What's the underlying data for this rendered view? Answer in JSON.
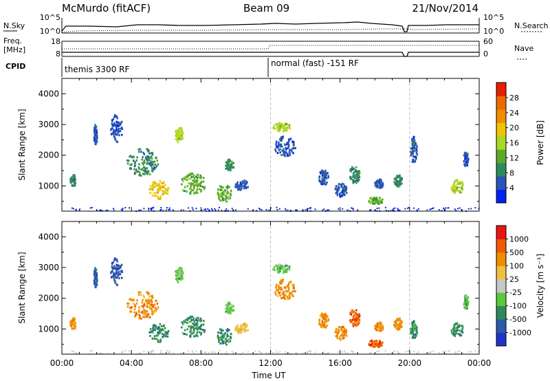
{
  "header": {
    "title": "McMurdo (fitACF)",
    "beam": "Beam 09",
    "date": "21/Nov/2014"
  },
  "strip": {
    "nsky_label": "N.Sky",
    "nsearch_label": "N.Search",
    "freq_label_1": "Freq.",
    "freq_label_2": "[MHz]",
    "nave_label": "Nave",
    "cpid_label": "CPID",
    "noise_left_ticks": [
      "10^5",
      "10^0"
    ],
    "noise_right_ticks": [
      "10^5",
      "10^0"
    ],
    "freq_ticks": [
      "18",
      "8"
    ],
    "nave_ticks": [
      "60",
      "0"
    ],
    "cpid_1": "themis 3300 RF",
    "cpid_2": "normal (fast) -151 RF"
  },
  "chart_data": [
    {
      "type": "heatmap",
      "name": "power",
      "ylabel": "Slant Range [km]",
      "xlabel": "",
      "ylim": [
        180,
        4500
      ],
      "xlim": [
        0,
        24
      ],
      "yticks": [
        "1000",
        "2000",
        "3000",
        "4000"
      ],
      "colorbar_label": "Power [dB]",
      "colorbar_ticks": [
        "28",
        "24",
        "20",
        "16",
        "12",
        "8",
        "4"
      ],
      "colorbar_colors": [
        "#0022ee",
        "#2a52b8",
        "#2e8a5a",
        "#5aaa2a",
        "#a8d828",
        "#f0c400",
        "#f08c00",
        "#ee6a00",
        "#e81e00"
      ],
      "echoes": [
        {
          "t": 0.6,
          "r": 1200,
          "dt": 0.35,
          "dr": 400,
          "c": 2
        },
        {
          "t": 1.9,
          "r": 2700,
          "dt": 0.2,
          "dr": 700,
          "c": 1
        },
        {
          "t": 3.1,
          "r": 2900,
          "dt": 0.7,
          "dr": 900,
          "c": 1
        },
        {
          "t": 4.6,
          "r": 1800,
          "dt": 1.8,
          "dr": 900,
          "c": 2
        },
        {
          "t": 5.5,
          "r": 900,
          "dt": 1.2,
          "dr": 600,
          "c": 5
        },
        {
          "t": 6.7,
          "r": 2700,
          "dt": 0.5,
          "dr": 500,
          "c": 4
        },
        {
          "t": 7.5,
          "r": 1100,
          "dt": 1.5,
          "dr": 700,
          "c": 3
        },
        {
          "t": 9.3,
          "r": 800,
          "dt": 0.8,
          "dr": 600,
          "c": 3
        },
        {
          "t": 9.6,
          "r": 1700,
          "dt": 0.5,
          "dr": 400,
          "c": 2
        },
        {
          "t": 10.3,
          "r": 1050,
          "dt": 0.8,
          "dr": 350,
          "c": 1
        },
        {
          "t": 12.6,
          "r": 2950,
          "dt": 1.0,
          "dr": 300,
          "c": 4
        },
        {
          "t": 12.8,
          "r": 2300,
          "dt": 1.2,
          "dr": 700,
          "c": 1
        },
        {
          "t": 15.0,
          "r": 1300,
          "dt": 0.6,
          "dr": 500,
          "c": 1
        },
        {
          "t": 16.0,
          "r": 900,
          "dt": 0.7,
          "dr": 500,
          "c": 1
        },
        {
          "t": 16.8,
          "r": 1400,
          "dt": 0.6,
          "dr": 600,
          "c": 2
        },
        {
          "t": 18.2,
          "r": 1100,
          "dt": 0.5,
          "dr": 300,
          "c": 1
        },
        {
          "t": 18.0,
          "r": 550,
          "dt": 0.9,
          "dr": 250,
          "c": 3
        },
        {
          "t": 19.3,
          "r": 1200,
          "dt": 0.5,
          "dr": 400,
          "c": 2
        },
        {
          "t": 20.2,
          "r": 2200,
          "dt": 0.4,
          "dr": 900,
          "c": 1
        },
        {
          "t": 22.7,
          "r": 1000,
          "dt": 0.7,
          "dr": 500,
          "c": 4
        },
        {
          "t": 23.2,
          "r": 1900,
          "dt": 0.3,
          "dr": 500,
          "c": 1
        }
      ]
    },
    {
      "type": "heatmap",
      "name": "velocity",
      "ylabel": "Slant Range [km]",
      "xlabel": "Time UT",
      "ylim": [
        180,
        4500
      ],
      "xlim": [
        0,
        24
      ],
      "yticks": [
        "1000",
        "2000",
        "3000",
        "4000"
      ],
      "xticks": [
        "00:00",
        "04:00",
        "08:00",
        "12:00",
        "16:00",
        "20:00",
        "00:00"
      ],
      "colorbar_label": "Velocity [m s⁻¹]",
      "colorbar_ticks": [
        "1000",
        "500",
        "100",
        "25",
        "-25",
        "-100",
        "-500",
        "-1000"
      ],
      "colorbar_colors": [
        "#2233cc",
        "#2e5aa8",
        "#2e8a5a",
        "#5ac83c",
        "#c8c8c8",
        "#f0c040",
        "#f08c00",
        "#ee5a00",
        "#e81414"
      ],
      "echoes": [
        {
          "t": 0.6,
          "r": 1200,
          "dt": 0.35,
          "dr": 400,
          "c": 6
        },
        {
          "t": 1.9,
          "r": 2700,
          "dt": 0.2,
          "dr": 700,
          "c": 1
        },
        {
          "t": 3.1,
          "r": 2900,
          "dt": 0.7,
          "dr": 900,
          "c": 1
        },
        {
          "t": 4.6,
          "r": 1800,
          "dt": 1.8,
          "dr": 900,
          "c": 6
        },
        {
          "t": 5.5,
          "r": 900,
          "dt": 1.2,
          "dr": 600,
          "c": 2
        },
        {
          "t": 6.7,
          "r": 2800,
          "dt": 0.5,
          "dr": 500,
          "c": 3
        },
        {
          "t": 7.5,
          "r": 1100,
          "dt": 1.5,
          "dr": 700,
          "c": 2
        },
        {
          "t": 9.3,
          "r": 800,
          "dt": 0.8,
          "dr": 600,
          "c": 2
        },
        {
          "t": 9.6,
          "r": 1700,
          "dt": 0.5,
          "dr": 400,
          "c": 3
        },
        {
          "t": 10.3,
          "r": 1050,
          "dt": 0.8,
          "dr": 350,
          "c": 5
        },
        {
          "t": 12.6,
          "r": 3000,
          "dt": 1.0,
          "dr": 300,
          "c": 3
        },
        {
          "t": 12.8,
          "r": 2300,
          "dt": 1.2,
          "dr": 700,
          "c": 6
        },
        {
          "t": 15.0,
          "r": 1300,
          "dt": 0.6,
          "dr": 500,
          "c": 6
        },
        {
          "t": 16.0,
          "r": 900,
          "dt": 0.7,
          "dr": 500,
          "c": 6
        },
        {
          "t": 16.8,
          "r": 1400,
          "dt": 0.6,
          "dr": 600,
          "c": 7
        },
        {
          "t": 18.2,
          "r": 1100,
          "dt": 0.5,
          "dr": 300,
          "c": 6
        },
        {
          "t": 18.0,
          "r": 550,
          "dt": 0.9,
          "dr": 250,
          "c": 7
        },
        {
          "t": 19.3,
          "r": 1200,
          "dt": 0.5,
          "dr": 400,
          "c": 6
        },
        {
          "t": 20.2,
          "r": 1000,
          "dt": 0.4,
          "dr": 600,
          "c": 2
        },
        {
          "t": 22.7,
          "r": 1000,
          "dt": 0.7,
          "dr": 500,
          "c": 2
        },
        {
          "t": 23.2,
          "r": 1900,
          "dt": 0.3,
          "dr": 500,
          "c": 3
        }
      ]
    }
  ]
}
